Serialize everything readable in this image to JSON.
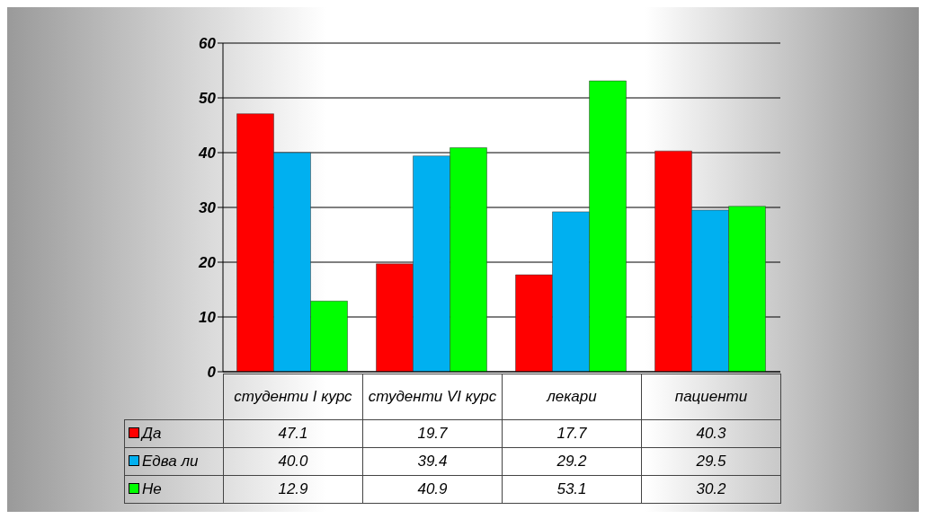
{
  "chart_data": {
    "type": "bar",
    "categories": [
      "студенти I курс",
      "студенти VI курс",
      "лекари",
      "пациенти"
    ],
    "series": [
      {
        "name": "Да",
        "color": "#ff0000",
        "values": [
          47.1,
          19.7,
          17.7,
          40.3
        ],
        "value_labels": [
          "47.1",
          "19.7",
          "17.7",
          "40.3"
        ]
      },
      {
        "name": "Едва ли",
        "color": "#00b0f0",
        "values": [
          40.0,
          39.4,
          29.2,
          29.5
        ],
        "value_labels": [
          "40.0",
          "39.4",
          "29.2",
          "29.5"
        ]
      },
      {
        "name": "Не",
        "color": "#00ff00",
        "values": [
          12.9,
          40.9,
          53.1,
          30.2
        ],
        "value_labels": [
          "12.9",
          "40.9",
          "53.1",
          "30.2"
        ]
      }
    ],
    "ylim": [
      0,
      60
    ],
    "yticks": [
      0,
      10,
      20,
      30,
      40,
      50,
      60
    ],
    "grid": "y",
    "legend": "bottom"
  }
}
